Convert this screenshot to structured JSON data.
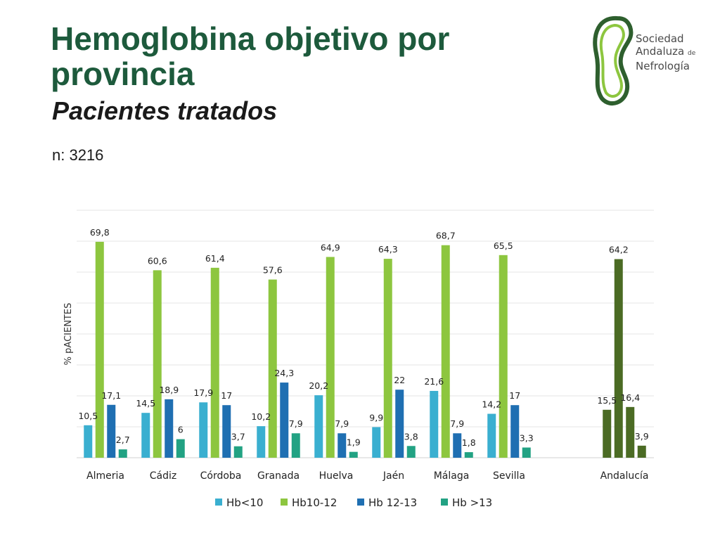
{
  "slide": {
    "title": "Hemoglobina objetivo por provincia",
    "subtitle": "Pacientes tratados",
    "n_label": "n: 3216"
  },
  "logo": {
    "line1": "Sociedad",
    "line2": "Andaluza",
    "line2_suffix": "de",
    "line3": "Nefrología"
  },
  "chart_data": {
    "type": "bar",
    "title": "",
    "ylabel": "% pACIENTES",
    "xlabel": "",
    "ylim": [
      0,
      80
    ],
    "grid": true,
    "legend_position": "bottom",
    "categories": [
      "Almeria",
      "Cádiz",
      "Córdoba",
      "Granada",
      "Huelva",
      "Jaén",
      "Málaga",
      "Sevilla",
      "Andalucía"
    ],
    "series": [
      {
        "name": "Hb<10",
        "color": "#3aafd0",
        "labels": [
          "10,5",
          "14,5",
          "17,9",
          "10,2",
          "20,2",
          "9,9",
          "21,6",
          "14,2",
          "15,5"
        ],
        "values": [
          10.5,
          14.5,
          17.9,
          10.2,
          20.2,
          9.9,
          21.6,
          14.2,
          15.5
        ]
      },
      {
        "name": "Hb10-12",
        "color": "#8dc63f",
        "labels": [
          "69,8",
          "60,6",
          "61,4",
          "57,6",
          "64,9",
          "64,3",
          "68,7",
          "65,5",
          "64,2"
        ],
        "values": [
          69.8,
          60.6,
          61.4,
          57.6,
          64.9,
          64.3,
          68.7,
          65.5,
          64.2
        ]
      },
      {
        "name": "Hb 12-13",
        "color": "#1f6fb2",
        "labels": [
          "17,1",
          "18,9",
          "17",
          "24,3",
          "7,9",
          "22",
          "7,9",
          "17",
          "16,4"
        ],
        "values": [
          17.1,
          18.9,
          17,
          24.3,
          7.9,
          22,
          7.9,
          17,
          16.4
        ]
      },
      {
        "name": "Hb >13",
        "color": "#22a283",
        "labels": [
          "2,7",
          "6",
          "3,7",
          "7,9",
          "1,9",
          "3,8",
          "1,8",
          "3,3",
          "3,9"
        ],
        "values": [
          2.7,
          6,
          3.7,
          7.9,
          1.9,
          3.8,
          1.8,
          3.3,
          3.9
        ]
      }
    ],
    "highlight_category": "Andalucía",
    "highlight_color": "#4b6b24"
  }
}
